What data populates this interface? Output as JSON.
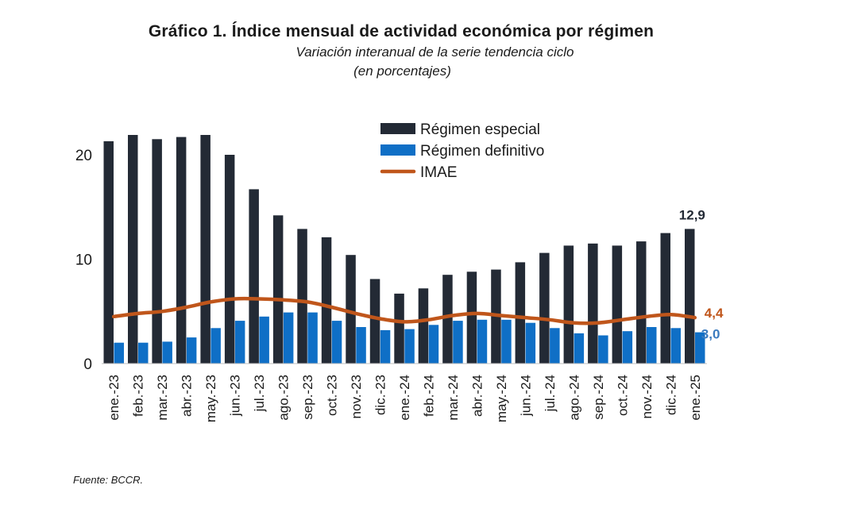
{
  "header": {
    "title": "Gráfico 1. Índice mensual de actividad económica por régimen",
    "subtitle": "Variación interanual de la serie tendencia ciclo",
    "subtitle2": "(en porcentajes)"
  },
  "footer": {
    "source": "Fuente:  BCCR."
  },
  "chart_data": {
    "type": "bar",
    "categories": [
      "ene.-23",
      "feb.-23",
      "mar.-23",
      "abr.-23",
      "may.-23",
      "jun.-23",
      "jul.-23",
      "ago.-23",
      "sep.-23",
      "oct.-23",
      "nov.-23",
      "dic.-23",
      "ene.-24",
      "feb.-24",
      "mar.-24",
      "abr.-24",
      "may.-24",
      "jun.-24",
      "jul.-24",
      "ago.-24",
      "sep.-24",
      "oct.-24",
      "nov.-24",
      "dic.-24",
      "ene.-25"
    ],
    "series": [
      {
        "name": "Régimen especial",
        "kind": "bar",
        "color": "#232a35",
        "values": [
          21.3,
          21.9,
          21.5,
          21.7,
          21.9,
          20.0,
          16.7,
          14.2,
          12.9,
          12.1,
          10.4,
          8.1,
          6.7,
          7.2,
          8.5,
          8.8,
          9.0,
          9.7,
          10.6,
          11.3,
          11.5,
          11.3,
          11.7,
          12.5,
          12.9
        ]
      },
      {
        "name": "Régimen definitivo",
        "kind": "bar",
        "color": "#0f6fc6",
        "values": [
          2.0,
          2.0,
          2.1,
          2.5,
          3.4,
          4.1,
          4.5,
          4.9,
          4.9,
          4.1,
          3.5,
          3.2,
          3.3,
          3.7,
          4.1,
          4.2,
          4.2,
          3.9,
          3.4,
          2.9,
          2.7,
          3.1,
          3.5,
          3.4,
          3.0
        ]
      },
      {
        "name": "IMAE",
        "kind": "line",
        "color": "#c0561b",
        "values": [
          4.5,
          4.8,
          5.0,
          5.4,
          5.9,
          6.2,
          6.2,
          6.1,
          5.9,
          5.4,
          4.8,
          4.3,
          4.0,
          4.2,
          4.6,
          4.8,
          4.6,
          4.4,
          4.2,
          3.9,
          3.9,
          4.2,
          4.5,
          4.7,
          4.4
        ]
      }
    ],
    "yticks": [
      0,
      10,
      20
    ],
    "ylim": [
      0,
      24
    ],
    "grid": false,
    "legend": "top-center",
    "annotations": [
      {
        "series": "Régimen especial",
        "index": 24,
        "text": "12,9",
        "color": "#232a35"
      },
      {
        "series": "IMAE",
        "index": 24,
        "text": "4,4",
        "color": "#c0561b"
      },
      {
        "series": "Régimen definitivo",
        "index": 24,
        "text": "3,0",
        "color": "#3b7bbf"
      }
    ]
  }
}
